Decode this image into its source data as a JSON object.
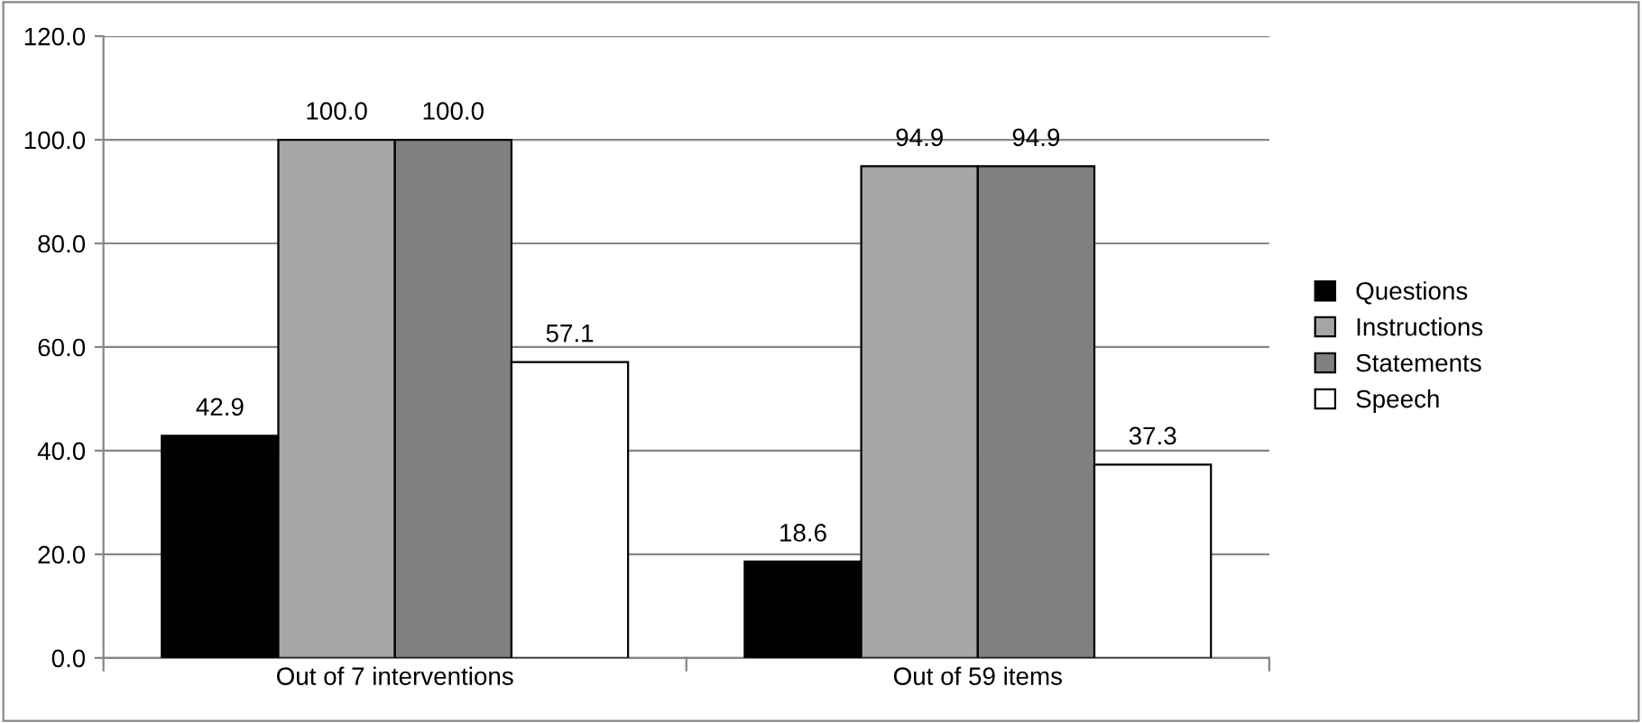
{
  "chart_data": {
    "type": "bar",
    "categories": [
      "Out of 7 interventions",
      "Out of 59 items"
    ],
    "series": [
      {
        "name": "Questions",
        "color": "#000000",
        "values": [
          42.9,
          18.6
        ],
        "value_labels": [
          "42.9",
          "18.6"
        ]
      },
      {
        "name": "Instructions",
        "color": "#a6a6a6",
        "values": [
          100.0,
          94.9
        ],
        "value_labels": [
          "100.0",
          "94.9"
        ]
      },
      {
        "name": "Statements",
        "color": "#808080",
        "values": [
          100.0,
          94.9
        ],
        "value_labels": [
          "100.0",
          "94.9"
        ]
      },
      {
        "name": "Speech",
        "color": "#ffffff",
        "values": [
          57.1,
          37.3
        ],
        "value_labels": [
          "57.1",
          "37.3"
        ]
      }
    ],
    "ylim": [
      0,
      120
    ],
    "yticks": [
      {
        "value": 0,
        "label": "0.0"
      },
      {
        "value": 20,
        "label": "20.0"
      },
      {
        "value": 40,
        "label": "40.0"
      },
      {
        "value": 60,
        "label": "60.0"
      },
      {
        "value": 80,
        "label": "80.0"
      },
      {
        "value": 100,
        "label": "100.0"
      },
      {
        "value": 120,
        "label": "120.0"
      }
    ],
    "grid": "y",
    "legend": "right"
  }
}
